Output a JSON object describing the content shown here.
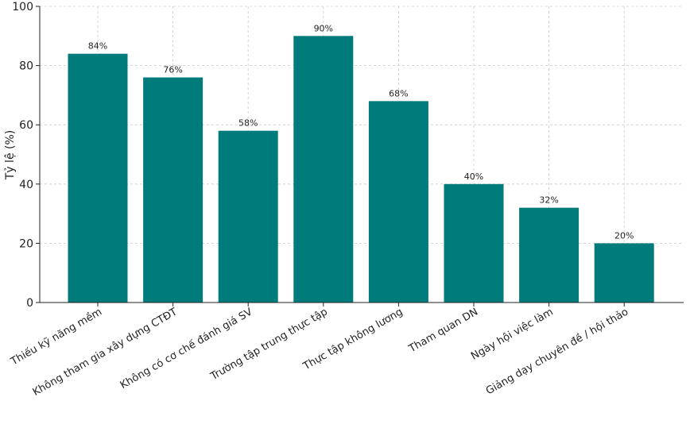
{
  "chart_data": {
    "type": "bar",
    "title": "",
    "xlabel": "",
    "ylabel": "Tỷ lệ (%)",
    "ylim": [
      0,
      100
    ],
    "yticks": [
      0,
      20,
      40,
      60,
      80,
      100
    ],
    "grid": true,
    "bar_color": "#007b7b",
    "categories": [
      "Thiếu kỹ năng mềm",
      "Không tham gia xây dựng CTĐT",
      "Không có cơ chế đánh giá SV",
      "Trường tập trung thực tập",
      "Thực tập không lương",
      "Tham quan DN",
      "Ngày hội việc làm",
      "Giảng dạy chuyên đề / hội thảo"
    ],
    "values": [
      84,
      76,
      58,
      90,
      68,
      40,
      32,
      20
    ],
    "data_labels": [
      "84%",
      "76%",
      "58%",
      "90%",
      "68%",
      "40%",
      "32%",
      "20%"
    ]
  }
}
